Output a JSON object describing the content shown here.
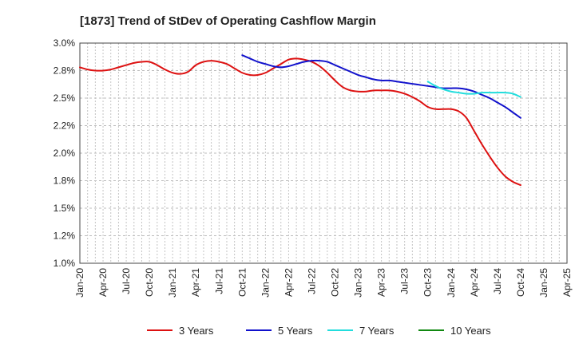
{
  "chart_data": {
    "type": "line",
    "title": "[1873]  Trend of StDev of Operating Cashflow Margin",
    "xlabel": "",
    "ylabel": "",
    "ylim": [
      1.0,
      3.0
    ],
    "yticks": [
      "1.0%",
      "1.2%",
      "1.5%",
      "1.8%",
      "2.0%",
      "2.2%",
      "2.5%",
      "2.8%",
      "3.0%"
    ],
    "xticks": [
      "Jan-20",
      "Apr-20",
      "Jul-20",
      "Oct-20",
      "Jan-21",
      "Apr-21",
      "Jul-21",
      "Oct-21",
      "Jan-22",
      "Apr-22",
      "Jul-22",
      "Oct-22",
      "Jan-23",
      "Apr-23",
      "Jul-23",
      "Oct-23",
      "Jan-24",
      "Apr-24",
      "Jul-24",
      "Oct-24",
      "Jan-25",
      "Apr-25"
    ],
    "grid": true,
    "legend_position": "bottom",
    "series": [
      {
        "name": "3 Years",
        "color": "#dd1111",
        "x": [
          "2020-01",
          "2020-02",
          "2020-03",
          "2020-04",
          "2020-05",
          "2020-06",
          "2020-07",
          "2020-08",
          "2020-09",
          "2020-10",
          "2020-11",
          "2020-12",
          "2021-01",
          "2021-02",
          "2021-03",
          "2021-04",
          "2021-05",
          "2021-06",
          "2021-07",
          "2021-08",
          "2021-09",
          "2021-10",
          "2021-11",
          "2021-12",
          "2022-01",
          "2022-02",
          "2022-03",
          "2022-04",
          "2022-05",
          "2022-06",
          "2022-07",
          "2022-08",
          "2022-09",
          "2022-10",
          "2022-11",
          "2022-12",
          "2023-01",
          "2023-02",
          "2023-03",
          "2023-04",
          "2023-05",
          "2023-06",
          "2023-07",
          "2023-08",
          "2023-09",
          "2023-10",
          "2023-11",
          "2023-12",
          "2024-01",
          "2024-02",
          "2024-03",
          "2024-04",
          "2024-05",
          "2024-06",
          "2024-07",
          "2024-08",
          "2024-09",
          "2024-10"
        ],
        "values": [
          2.78,
          2.76,
          2.75,
          2.75,
          2.76,
          2.78,
          2.8,
          2.82,
          2.83,
          2.83,
          2.8,
          2.76,
          2.73,
          2.72,
          2.74,
          2.8,
          2.83,
          2.84,
          2.83,
          2.81,
          2.77,
          2.73,
          2.71,
          2.71,
          2.73,
          2.77,
          2.81,
          2.85,
          2.86,
          2.85,
          2.83,
          2.79,
          2.73,
          2.66,
          2.6,
          2.57,
          2.56,
          2.56,
          2.57,
          2.57,
          2.57,
          2.56,
          2.54,
          2.51,
          2.47,
          2.42,
          2.4,
          2.4,
          2.4,
          2.38,
          2.32,
          2.2,
          2.08,
          1.97,
          1.87,
          1.79,
          1.74,
          1.71
        ]
      },
      {
        "name": "5 Years",
        "color": "#1111cc",
        "x": [
          "2021-10",
          "2021-11",
          "2021-12",
          "2022-01",
          "2022-02",
          "2022-03",
          "2022-04",
          "2022-05",
          "2022-06",
          "2022-07",
          "2022-08",
          "2022-09",
          "2022-10",
          "2022-11",
          "2022-12",
          "2023-01",
          "2023-02",
          "2023-03",
          "2023-04",
          "2023-05",
          "2023-06",
          "2023-07",
          "2023-08",
          "2023-09",
          "2023-10",
          "2023-11",
          "2023-12",
          "2024-01",
          "2024-02",
          "2024-03",
          "2024-04",
          "2024-05",
          "2024-06",
          "2024-07",
          "2024-08",
          "2024-09",
          "2024-10"
        ],
        "values": [
          2.89,
          2.86,
          2.83,
          2.81,
          2.79,
          2.78,
          2.79,
          2.81,
          2.83,
          2.84,
          2.84,
          2.83,
          2.8,
          2.77,
          2.74,
          2.71,
          2.69,
          2.67,
          2.66,
          2.66,
          2.65,
          2.64,
          2.63,
          2.62,
          2.61,
          2.6,
          2.59,
          2.59,
          2.59,
          2.58,
          2.56,
          2.53,
          2.5,
          2.46,
          2.42,
          2.37,
          2.32
        ]
      },
      {
        "name": "7 Years",
        "color": "#22dddd",
        "x": [
          "2023-10",
          "2023-11",
          "2023-12",
          "2024-01",
          "2024-02",
          "2024-03",
          "2024-04",
          "2024-05",
          "2024-06",
          "2024-07",
          "2024-08",
          "2024-09",
          "2024-10"
        ],
        "values": [
          2.65,
          2.61,
          2.58,
          2.56,
          2.55,
          2.54,
          2.54,
          2.55,
          2.55,
          2.55,
          2.55,
          2.54,
          2.51
        ]
      },
      {
        "name": "10 Years",
        "color": "#118811",
        "x": [],
        "values": []
      }
    ]
  }
}
